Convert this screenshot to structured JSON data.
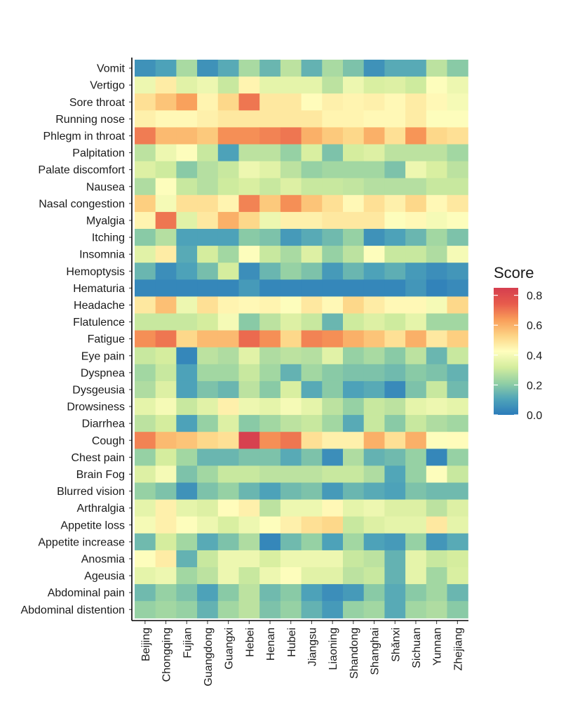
{
  "chart_data": {
    "type": "heatmap",
    "title": "",
    "xlabel": "",
    "ylabel": "",
    "x": [
      "Beijing",
      "Chongqing",
      "Fujian",
      "Guangdong",
      "Guangxi",
      "Hebei",
      "Henan",
      "Hubei",
      "Jiangsu",
      "Liaoning",
      "Shandong",
      "Shanghai",
      "Shǎnxi",
      "Sichuan",
      "Yunnan",
      "Zhejiang"
    ],
    "y": [
      "Vomit",
      "Vertigo",
      "Sore throat",
      "Running nose",
      "Phlegm in throat",
      "Palpitation",
      "Palate discomfort",
      "Nausea",
      "Nasal congestion",
      "Myalgia",
      "Itching",
      "Insomnia",
      "Hemoptysis",
      "Hematuria",
      "Headache",
      "Flatulence",
      "Fatigue",
      "Eye pain",
      "Dyspnea",
      "Dysgeusia",
      "Drowsiness",
      "Diarrhea",
      "Cough",
      "Chest pain",
      "Brain Fog",
      "Blurred vision",
      "Arthralgia",
      "Appetite loss",
      "Appetite increase",
      "Anosmia",
      "Ageusia",
      "Abdominal pain",
      "Abdominal distention"
    ],
    "values": [
      [
        0.06,
        0.1,
        0.25,
        0.06,
        0.12,
        0.25,
        0.15,
        0.28,
        0.14,
        0.25,
        0.18,
        0.06,
        0.12,
        0.12,
        0.28,
        0.2
      ],
      [
        0.38,
        0.47,
        0.35,
        0.38,
        0.3,
        0.45,
        0.36,
        0.36,
        0.36,
        0.28,
        0.38,
        0.33,
        0.34,
        0.31,
        0.42,
        0.38
      ],
      [
        0.5,
        0.56,
        0.63,
        0.45,
        0.52,
        0.7,
        0.48,
        0.48,
        0.43,
        0.46,
        0.45,
        0.46,
        0.44,
        0.47,
        0.44,
        0.4
      ],
      [
        0.46,
        0.44,
        0.44,
        0.46,
        0.48,
        0.48,
        0.48,
        0.48,
        0.48,
        0.45,
        0.45,
        0.44,
        0.44,
        0.47,
        0.42,
        0.42
      ],
      [
        0.69,
        0.58,
        0.58,
        0.55,
        0.66,
        0.66,
        0.68,
        0.7,
        0.6,
        0.55,
        0.52,
        0.6,
        0.5,
        0.65,
        0.52,
        0.5
      ],
      [
        0.28,
        0.38,
        0.42,
        0.3,
        0.1,
        0.28,
        0.28,
        0.22,
        0.33,
        0.18,
        0.32,
        0.34,
        0.28,
        0.28,
        0.28,
        0.24
      ],
      [
        0.34,
        0.31,
        0.2,
        0.27,
        0.3,
        0.38,
        0.35,
        0.28,
        0.22,
        0.24,
        0.24,
        0.24,
        0.18,
        0.38,
        0.33,
        0.28
      ],
      [
        0.26,
        0.42,
        0.3,
        0.27,
        0.31,
        0.33,
        0.3,
        0.34,
        0.3,
        0.3,
        0.29,
        0.27,
        0.27,
        0.27,
        0.3,
        0.3
      ],
      [
        0.54,
        0.4,
        0.5,
        0.5,
        0.45,
        0.68,
        0.55,
        0.66,
        0.56,
        0.5,
        0.44,
        0.5,
        0.46,
        0.52,
        0.44,
        0.48
      ],
      [
        0.45,
        0.7,
        0.35,
        0.48,
        0.6,
        0.52,
        0.38,
        0.46,
        0.46,
        0.48,
        0.48,
        0.48,
        0.42,
        0.44,
        0.4,
        0.42
      ],
      [
        0.2,
        0.27,
        0.1,
        0.1,
        0.1,
        0.2,
        0.18,
        0.08,
        0.12,
        0.16,
        0.22,
        0.06,
        0.1,
        0.15,
        0.24,
        0.18
      ],
      [
        0.35,
        0.47,
        0.12,
        0.32,
        0.24,
        0.42,
        0.3,
        0.25,
        0.34,
        0.22,
        0.28,
        0.42,
        0.3,
        0.3,
        0.26,
        0.4
      ],
      [
        0.15,
        0.05,
        0.1,
        0.17,
        0.32,
        0.05,
        0.15,
        0.22,
        0.18,
        0.08,
        0.15,
        0.1,
        0.13,
        0.08,
        0.05,
        0.07
      ],
      [
        0.03,
        0.03,
        0.03,
        0.03,
        0.03,
        0.08,
        0.03,
        0.03,
        0.03,
        0.03,
        0.03,
        0.03,
        0.03,
        0.07,
        0.02,
        0.04
      ],
      [
        0.48,
        0.57,
        0.38,
        0.5,
        0.45,
        0.44,
        0.45,
        0.42,
        0.48,
        0.44,
        0.52,
        0.47,
        0.44,
        0.44,
        0.4,
        0.52
      ],
      [
        0.3,
        0.3,
        0.3,
        0.32,
        0.4,
        0.2,
        0.28,
        0.34,
        0.3,
        0.15,
        0.31,
        0.34,
        0.31,
        0.36,
        0.24,
        0.24
      ],
      [
        0.66,
        0.7,
        0.52,
        0.58,
        0.58,
        0.72,
        0.66,
        0.52,
        0.68,
        0.66,
        0.6,
        0.56,
        0.5,
        0.6,
        0.48,
        0.54
      ],
      [
        0.3,
        0.32,
        0.03,
        0.28,
        0.26,
        0.35,
        0.26,
        0.28,
        0.27,
        0.35,
        0.22,
        0.25,
        0.2,
        0.28,
        0.15,
        0.3
      ],
      [
        0.24,
        0.3,
        0.1,
        0.24,
        0.24,
        0.3,
        0.24,
        0.14,
        0.24,
        0.2,
        0.18,
        0.18,
        0.16,
        0.2,
        0.18,
        0.14
      ],
      [
        0.26,
        0.34,
        0.1,
        0.18,
        0.15,
        0.28,
        0.2,
        0.33,
        0.12,
        0.2,
        0.1,
        0.12,
        0.04,
        0.18,
        0.3,
        0.16
      ],
      [
        0.36,
        0.4,
        0.3,
        0.35,
        0.46,
        0.38,
        0.36,
        0.4,
        0.36,
        0.28,
        0.22,
        0.3,
        0.28,
        0.36,
        0.38,
        0.36
      ],
      [
        0.28,
        0.32,
        0.1,
        0.22,
        0.34,
        0.2,
        0.24,
        0.28,
        0.3,
        0.24,
        0.12,
        0.3,
        0.2,
        0.3,
        0.26,
        0.24
      ],
      [
        0.68,
        0.58,
        0.56,
        0.52,
        0.5,
        0.84,
        0.66,
        0.7,
        0.5,
        0.46,
        0.46,
        0.6,
        0.5,
        0.6,
        0.42,
        0.43
      ],
      [
        0.22,
        0.32,
        0.24,
        0.15,
        0.15,
        0.18,
        0.18,
        0.12,
        0.18,
        0.05,
        0.26,
        0.14,
        0.16,
        0.22,
        0.03,
        0.22
      ],
      [
        0.34,
        0.4,
        0.18,
        0.24,
        0.3,
        0.3,
        0.28,
        0.28,
        0.28,
        0.3,
        0.3,
        0.26,
        0.11,
        0.22,
        0.42,
        0.3
      ],
      [
        0.22,
        0.18,
        0.06,
        0.18,
        0.22,
        0.15,
        0.1,
        0.16,
        0.18,
        0.08,
        0.15,
        0.12,
        0.1,
        0.18,
        0.16,
        0.16
      ],
      [
        0.36,
        0.46,
        0.36,
        0.34,
        0.43,
        0.46,
        0.28,
        0.38,
        0.38,
        0.44,
        0.36,
        0.38,
        0.34,
        0.34,
        0.28,
        0.34
      ],
      [
        0.4,
        0.46,
        0.42,
        0.38,
        0.33,
        0.38,
        0.42,
        0.46,
        0.5,
        0.52,
        0.3,
        0.34,
        0.36,
        0.36,
        0.48,
        0.36
      ],
      [
        0.16,
        0.32,
        0.24,
        0.12,
        0.18,
        0.26,
        0.03,
        0.16,
        0.22,
        0.1,
        0.24,
        0.1,
        0.08,
        0.22,
        0.07,
        0.12
      ],
      [
        0.42,
        0.47,
        0.14,
        0.3,
        0.38,
        0.38,
        0.33,
        0.38,
        0.38,
        0.38,
        0.3,
        0.28,
        0.14,
        0.36,
        0.3,
        0.32
      ],
      [
        0.36,
        0.38,
        0.24,
        0.28,
        0.38,
        0.3,
        0.38,
        0.42,
        0.35,
        0.35,
        0.28,
        0.3,
        0.14,
        0.36,
        0.24,
        0.33
      ],
      [
        0.16,
        0.22,
        0.18,
        0.1,
        0.2,
        0.28,
        0.16,
        0.2,
        0.1,
        0.05,
        0.08,
        0.2,
        0.12,
        0.2,
        0.24,
        0.15
      ],
      [
        0.22,
        0.24,
        0.22,
        0.14,
        0.24,
        0.28,
        0.18,
        0.22,
        0.14,
        0.08,
        0.22,
        0.24,
        0.12,
        0.24,
        0.26,
        0.2
      ]
    ],
    "legend": {
      "title": "Score",
      "ticks": [
        0.8,
        0.6,
        0.4,
        0.2,
        0.0
      ],
      "tick_labels": [
        "0.8",
        "0.6",
        "0.4",
        "0.2",
        "0.0"
      ],
      "range": [
        0.0,
        0.85
      ],
      "placement": "right"
    },
    "colorscale": [
      "#2b7bba",
      "#4fa4b9",
      "#91cfa4",
      "#d4ed9e",
      "#fffebe",
      "#fdd384",
      "#f99d59",
      "#e75b4c",
      "#d53e4f"
    ]
  }
}
